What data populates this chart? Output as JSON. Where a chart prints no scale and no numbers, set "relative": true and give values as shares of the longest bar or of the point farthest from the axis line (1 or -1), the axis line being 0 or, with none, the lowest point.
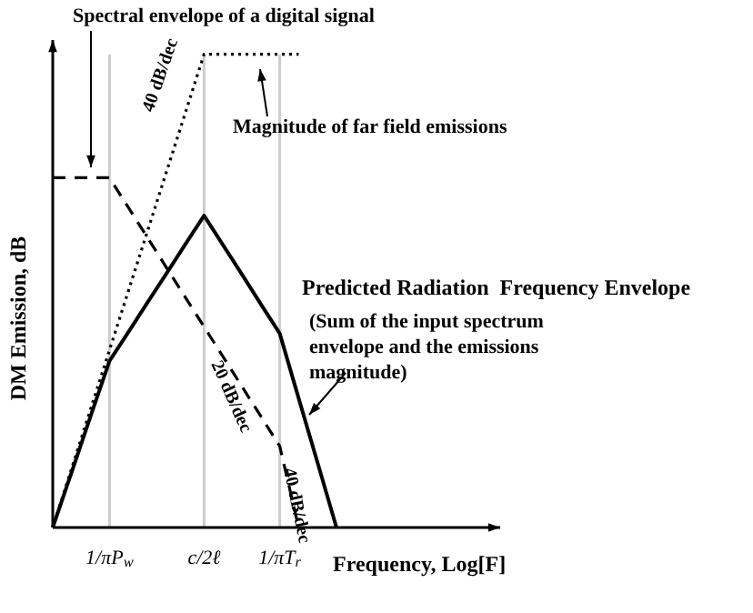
{
  "chart_data": {
    "type": "line",
    "relative": true,
    "xlabel": "Frequency, Log[F]",
    "ylabel": "DM Emission, dB",
    "categories": [
      null,
      null,
      null,
      "1/πP$_{w}$",
      null,
      null,
      null,
      null,
      "c/2ℓ",
      null,
      null,
      null,
      "1/πT$_{r}$",
      null,
      null,
      null
    ],
    "grid": "x",
    "legend": false,
    "series": [
      {
        "line_style": "dashed",
        "color": "#000000",
        "values": [
          0.739,
          0.739,
          0.739,
          0.739,
          0.676,
          0.613,
          0.55,
          0.487,
          0.424,
          0.361,
          0.298,
          0.235,
          0.172,
          0,
          null,
          null
        ]
      },
      {
        "line_style": "dotted",
        "color": "#000000",
        "values": [
          0,
          0.125,
          0.25,
          0.375,
          0.5,
          0.625,
          0.75,
          0.875,
          1,
          1,
          1,
          1,
          1,
          1,
          null,
          null
        ]
      },
      {
        "line_style": "solid",
        "color": "#000000",
        "values": [
          0,
          0.117,
          0.235,
          0.352,
          0.413,
          0.475,
          0.536,
          0.598,
          0.659,
          0.597,
          0.535,
          0.472,
          0.41,
          0.273,
          0.137,
          0
        ]
      }
    ],
    "annotations": [
      "Spectral envelope of a digital signal",
      "Magnitude of far field emissions",
      "40 dB/dec",
      "20 dB/dec",
      "40 dB/dec",
      "Predicted Radiation  Frequency Envelope",
      "(Sum of the input spectrum envelope and the emissions magnitude)"
    ]
  }
}
